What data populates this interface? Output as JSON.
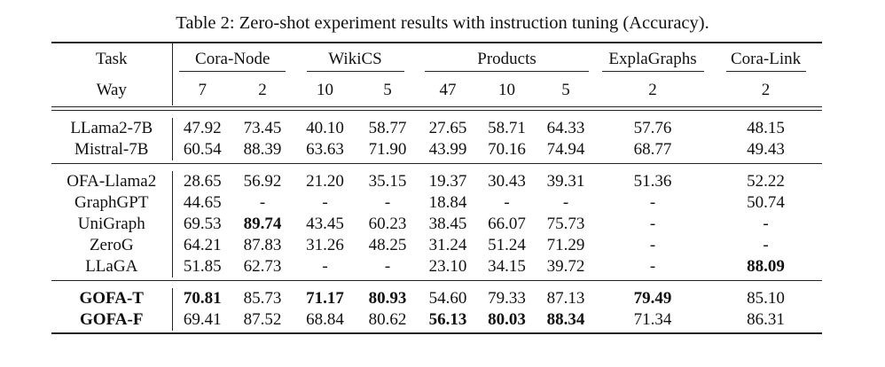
{
  "caption": "Table 2: Zero-shot experiment results with instruction tuning (Accuracy).",
  "header": {
    "task_label": "Task",
    "way_label": "Way",
    "groups": [
      "Cora-Node",
      "WikiCS",
      "Products",
      "ExplaGraphs",
      "Cora-Link"
    ],
    "ways": [
      "7",
      "2",
      "10",
      "5",
      "47",
      "10",
      "5",
      "2",
      "2"
    ]
  },
  "sections": [
    [
      {
        "model": "LLama2-7B",
        "values": [
          "47.92",
          "73.45",
          "40.10",
          "58.77",
          "27.65",
          "58.71",
          "64.33",
          "57.76",
          "48.15"
        ],
        "bold": []
      },
      {
        "model": "Mistral-7B",
        "values": [
          "60.54",
          "88.39",
          "63.63",
          "71.90",
          "43.99",
          "70.16",
          "74.94",
          "68.77",
          "49.43"
        ],
        "bold": []
      }
    ],
    [
      {
        "model": "OFA-Llama2",
        "values": [
          "28.65",
          "56.92",
          "21.20",
          "35.15",
          "19.37",
          "30.43",
          "39.31",
          "51.36",
          "52.22"
        ],
        "bold": []
      },
      {
        "model": "GraphGPT",
        "values": [
          "44.65",
          "-",
          "-",
          "-",
          "18.84",
          "-",
          "-",
          "-",
          "50.74"
        ],
        "bold": []
      },
      {
        "model": "UniGraph",
        "values": [
          "69.53",
          "89.74",
          "43.45",
          "60.23",
          "38.45",
          "66.07",
          "75.73",
          "-",
          "-"
        ],
        "bold": [
          1
        ]
      },
      {
        "model": "ZeroG",
        "values": [
          "64.21",
          "87.83",
          "31.26",
          "48.25",
          "31.24",
          "51.24",
          "71.29",
          "-",
          "-"
        ],
        "bold": []
      },
      {
        "model": "LLaGA",
        "values": [
          "51.85",
          "62.73",
          "-",
          "-",
          "23.10",
          "34.15",
          "39.72",
          "-",
          "88.09"
        ],
        "bold": [
          8
        ]
      }
    ],
    [
      {
        "model": "GOFA-T",
        "values": [
          "70.81",
          "85.73",
          "71.17",
          "80.93",
          "54.60",
          "79.33",
          "87.13",
          "79.49",
          "85.10"
        ],
        "bold": [
          0,
          2,
          3,
          7
        ],
        "model_bold": true
      },
      {
        "model": "GOFA-F",
        "values": [
          "69.41",
          "87.52",
          "68.84",
          "80.62",
          "56.13",
          "80.03",
          "88.34",
          "71.34",
          "86.31"
        ],
        "bold": [
          4,
          5,
          6
        ],
        "model_bold": true
      }
    ]
  ]
}
